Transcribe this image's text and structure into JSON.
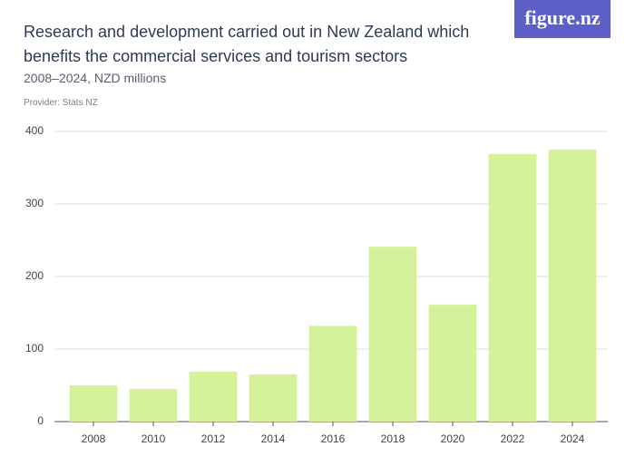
{
  "chart_data": {
    "type": "bar",
    "title": "Research and development carried out in New Zealand which benefits the commercial services and tourism sectors",
    "subtitle": "2008–2024, NZD millions",
    "provider": "Provider: Stats NZ",
    "logo": "figure.nz",
    "categories": [
      "2008",
      "2010",
      "2012",
      "2014",
      "2016",
      "2018",
      "2020",
      "2022",
      "2024"
    ],
    "values": [
      50,
      45,
      69,
      65,
      132,
      241,
      161,
      369,
      375
    ],
    "color": "#d4f29a",
    "ylim": [
      0,
      400
    ],
    "yticks": [
      0,
      100,
      200,
      300,
      400
    ],
    "grid": true
  }
}
